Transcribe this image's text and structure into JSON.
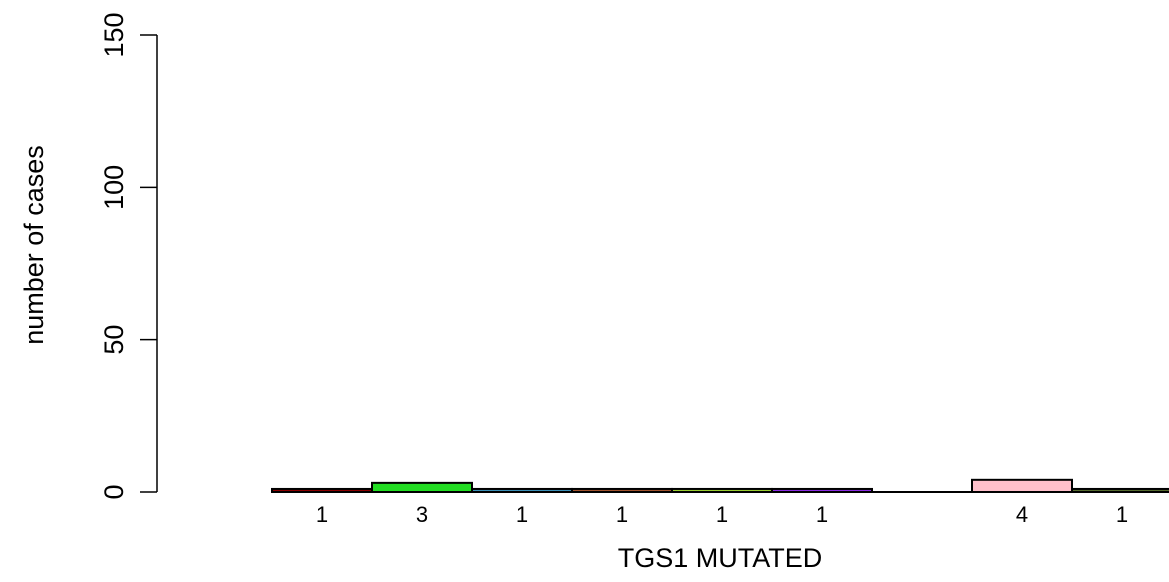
{
  "chart_data": {
    "type": "bar",
    "xlabel": "TGS1 MUTATED",
    "ylabel": "number of cases",
    "ylim": [
      0,
      150
    ],
    "yticks": [
      "0",
      "50",
      "100",
      "150"
    ],
    "grid": false,
    "bars": [
      {
        "value": 1,
        "label": "1",
        "color": "#8B0000"
      },
      {
        "value": 3,
        "label": "3",
        "color": "#22DD22"
      },
      {
        "value": 1,
        "label": "1",
        "color": "#3A8FB7"
      },
      {
        "value": 1,
        "label": "1",
        "color": "#A0522D"
      },
      {
        "value": 1,
        "label": "1",
        "color": "#9ACD32"
      },
      {
        "value": 1,
        "label": "1",
        "color": "#8A2BE2"
      },
      {
        "value": 0,
        "label": "",
        "color": "#FFFFFF"
      },
      {
        "value": 4,
        "label": "4",
        "color": "#FFC0CB"
      },
      {
        "value": 1,
        "label": "1",
        "color": "#556B2F"
      }
    ]
  }
}
